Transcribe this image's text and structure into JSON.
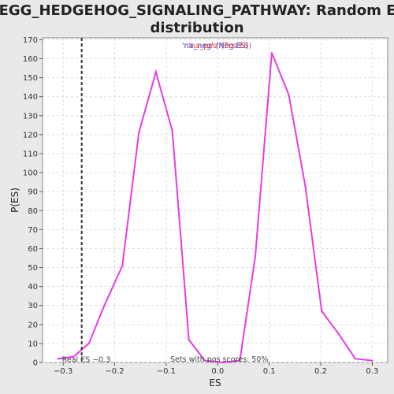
{
  "chart_data": {
    "type": "line",
    "title_line1": "KEGG_HEDGEHOG_SIGNALING_PATHWAY: Random ES",
    "title_line2": "distribution",
    "xlabel": "ES",
    "ylabel": "P(ES)",
    "xlim": [
      -0.34,
      0.33
    ],
    "ylim": [
      0,
      171
    ],
    "x_ticks": [
      -0.3,
      -0.2,
      -0.1,
      0.0,
      0.1,
      0.2,
      0.3
    ],
    "x_tick_labels": [
      "−0.3",
      "−0.2",
      "−0.1",
      "0.0",
      "0.1",
      "0.2",
      "0.3"
    ],
    "y_ticks": [
      0,
      10,
      20,
      30,
      40,
      50,
      60,
      70,
      80,
      90,
      100,
      110,
      120,
      130,
      140,
      150,
      160,
      170
    ],
    "grid": true,
    "series": [
      {
        "color": "#e83ae8",
        "x": [
          -0.31,
          -0.28,
          -0.25,
          -0.22,
          -0.185,
          -0.153,
          -0.12,
          -0.088,
          -0.056,
          -0.025,
          0.01,
          0.043,
          0.073,
          0.105,
          0.138,
          0.17,
          0.202,
          0.235,
          0.267,
          0.3
        ],
        "y": [
          2,
          3,
          10,
          30,
          51,
          121,
          153,
          122,
          12,
          1,
          0,
          1,
          56,
          163,
          141,
          93,
          27,
          15,
          2,
          1
        ]
      }
    ],
    "real_es": {
      "value": -0.264,
      "label": "Real ES −0.3"
    },
    "legend": {
      "neg_label": "'na_neg' (Neg ES)",
      "pos_label": "'na_pos' (Pos ES)",
      "placement": "top-center"
    },
    "annotation": "Sets with pos scores: 50%"
  },
  "colors": {
    "background": "#e9e9e9",
    "plot_background": "#ffffff",
    "line": "#e83ae8",
    "real_es_line": "#333333",
    "legend_neg": "#2e2ec8",
    "legend_pos": "#e8473a"
  }
}
